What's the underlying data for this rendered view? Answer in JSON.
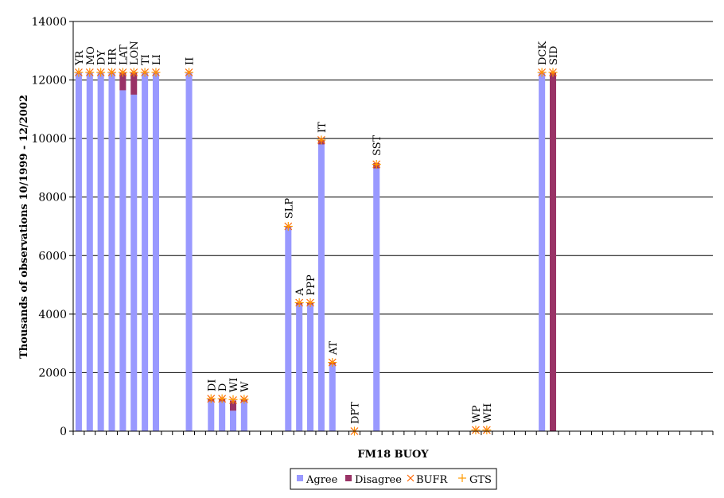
{
  "chart_data": {
    "type": "bar",
    "stacked": true,
    "xlabel": "FM18 BUOY",
    "ylabel": "Thousands of observations 10/1999 - 12/2002",
    "ylim": [
      0,
      14000
    ],
    "yticks": [
      0,
      2000,
      4000,
      6000,
      8000,
      10000,
      12000,
      14000
    ],
    "grid": true,
    "legend_position": "bottom-center",
    "colors": {
      "agree": "#9999ff",
      "disagree": "#993366",
      "bufr": "#ff6600",
      "gts": "#ff9900"
    },
    "series": [
      {
        "name": "Agree"
      },
      {
        "name": "Disagree"
      },
      {
        "name": "BUFR"
      },
      {
        "name": "GTS"
      }
    ],
    "categories": [
      {
        "label": "YR",
        "agree": 12260,
        "disagree": 0,
        "bufr": 12260,
        "gts": 12260
      },
      {
        "label": "MO",
        "agree": 12260,
        "disagree": 0,
        "bufr": 12260,
        "gts": 12260
      },
      {
        "label": "DY",
        "agree": 12260,
        "disagree": 0,
        "bufr": 12260,
        "gts": 12260
      },
      {
        "label": "HR",
        "agree": 12260,
        "disagree": 0,
        "bufr": 12260,
        "gts": 12260
      },
      {
        "label": "LAT",
        "agree": 11650,
        "disagree": 610,
        "bufr": 12260,
        "gts": 12260
      },
      {
        "label": "LON",
        "agree": 11500,
        "disagree": 760,
        "bufr": 12260,
        "gts": 12260
      },
      {
        "label": "TI",
        "agree": 12260,
        "disagree": 0,
        "bufr": 12260,
        "gts": 12260
      },
      {
        "label": "LI",
        "agree": 12260,
        "disagree": 0,
        "bufr": 12260,
        "gts": 12260
      },
      {
        "label": "",
        "agree": 0,
        "disagree": 0,
        "bufr": null,
        "gts": null
      },
      {
        "label": "",
        "agree": 0,
        "disagree": 0,
        "bufr": null,
        "gts": null
      },
      {
        "label": "II",
        "agree": 12260,
        "disagree": 0,
        "bufr": 12260,
        "gts": 12260
      },
      {
        "label": "",
        "agree": 0,
        "disagree": 0,
        "bufr": null,
        "gts": null
      },
      {
        "label": "DI",
        "agree": 1020,
        "disagree": 90,
        "bufr": 1110,
        "gts": 1110
      },
      {
        "label": "D",
        "agree": 1020,
        "disagree": 90,
        "bufr": 1110,
        "gts": 1110
      },
      {
        "label": "WI",
        "agree": 700,
        "disagree": 350,
        "bufr": 1060,
        "gts": 1080
      },
      {
        "label": "W",
        "agree": 1010,
        "disagree": 80,
        "bufr": 1090,
        "gts": 1090
      },
      {
        "label": "",
        "agree": 0,
        "disagree": 0,
        "bufr": null,
        "gts": null
      },
      {
        "label": "",
        "agree": 0,
        "disagree": 0,
        "bufr": null,
        "gts": null
      },
      {
        "label": "",
        "agree": 0,
        "disagree": 0,
        "bufr": null,
        "gts": null
      },
      {
        "label": "SLP",
        "agree": 6970,
        "disagree": 40,
        "bufr": 7000,
        "gts": 7000
      },
      {
        "label": "A",
        "agree": 4330,
        "disagree": 60,
        "bufr": 4390,
        "gts": 4390
      },
      {
        "label": "PPP",
        "agree": 4330,
        "disagree": 60,
        "bufr": 4390,
        "gts": 4390
      },
      {
        "label": "IT",
        "agree": 9800,
        "disagree": 150,
        "bufr": 9950,
        "gts": 9950
      },
      {
        "label": "AT",
        "agree": 2280,
        "disagree": 80,
        "bufr": 2350,
        "gts": 2350
      },
      {
        "label": "",
        "agree": 0,
        "disagree": 0,
        "bufr": null,
        "gts": null
      },
      {
        "label": "DPT",
        "agree": 0,
        "disagree": 0,
        "bufr": 0,
        "gts": 0
      },
      {
        "label": "",
        "agree": 0,
        "disagree": 0,
        "bufr": null,
        "gts": null
      },
      {
        "label": "SST",
        "agree": 8980,
        "disagree": 180,
        "bufr": 9120,
        "gts": 9120
      },
      {
        "label": "",
        "agree": 0,
        "disagree": 0,
        "bufr": null,
        "gts": null
      },
      {
        "label": "",
        "agree": 0,
        "disagree": 0,
        "bufr": null,
        "gts": null
      },
      {
        "label": "",
        "agree": 0,
        "disagree": 0,
        "bufr": null,
        "gts": null
      },
      {
        "label": "",
        "agree": 0,
        "disagree": 0,
        "bufr": null,
        "gts": null
      },
      {
        "label": "",
        "agree": 0,
        "disagree": 0,
        "bufr": null,
        "gts": null
      },
      {
        "label": "",
        "agree": 0,
        "disagree": 0,
        "bufr": null,
        "gts": null
      },
      {
        "label": "",
        "agree": 0,
        "disagree": 0,
        "bufr": null,
        "gts": null
      },
      {
        "label": "",
        "agree": 0,
        "disagree": 0,
        "bufr": null,
        "gts": null
      },
      {
        "label": "WP",
        "agree": 0,
        "disagree": 0,
        "bufr": 40,
        "gts": 40
      },
      {
        "label": "WH",
        "agree": 0,
        "disagree": 0,
        "bufr": 40,
        "gts": 40
      },
      {
        "label": "",
        "agree": 0,
        "disagree": 0,
        "bufr": null,
        "gts": null
      },
      {
        "label": "",
        "agree": 0,
        "disagree": 0,
        "bufr": null,
        "gts": null
      },
      {
        "label": "",
        "agree": 0,
        "disagree": 0,
        "bufr": null,
        "gts": null
      },
      {
        "label": "",
        "agree": 0,
        "disagree": 0,
        "bufr": null,
        "gts": null
      },
      {
        "label": "DCK",
        "agree": 12260,
        "disagree": 0,
        "bufr": 12260,
        "gts": 12260
      },
      {
        "label": "SID",
        "agree": 0,
        "disagree": 12260,
        "bufr": 12260,
        "gts": 12260
      },
      {
        "label": "",
        "agree": 0,
        "disagree": 0,
        "bufr": null,
        "gts": null
      },
      {
        "label": "",
        "agree": 0,
        "disagree": 0,
        "bufr": null,
        "gts": null
      },
      {
        "label": "",
        "agree": 0,
        "disagree": 0,
        "bufr": null,
        "gts": null
      },
      {
        "label": "",
        "agree": 0,
        "disagree": 0,
        "bufr": null,
        "gts": null
      },
      {
        "label": "",
        "agree": 0,
        "disagree": 0,
        "bufr": null,
        "gts": null
      },
      {
        "label": "",
        "agree": 0,
        "disagree": 0,
        "bufr": null,
        "gts": null
      },
      {
        "label": "",
        "agree": 0,
        "disagree": 0,
        "bufr": null,
        "gts": null
      },
      {
        "label": "",
        "agree": 0,
        "disagree": 0,
        "bufr": null,
        "gts": null
      },
      {
        "label": "",
        "agree": 0,
        "disagree": 0,
        "bufr": null,
        "gts": null
      },
      {
        "label": "",
        "agree": 0,
        "disagree": 0,
        "bufr": null,
        "gts": null
      },
      {
        "label": "",
        "agree": 0,
        "disagree": 0,
        "bufr": null,
        "gts": null
      },
      {
        "label": "",
        "agree": 0,
        "disagree": 0,
        "bufr": null,
        "gts": null
      },
      {
        "label": "",
        "agree": 0,
        "disagree": 0,
        "bufr": null,
        "gts": null
      },
      {
        "label": "",
        "agree": 0,
        "disagree": 0,
        "bufr": null,
        "gts": null
      }
    ]
  }
}
